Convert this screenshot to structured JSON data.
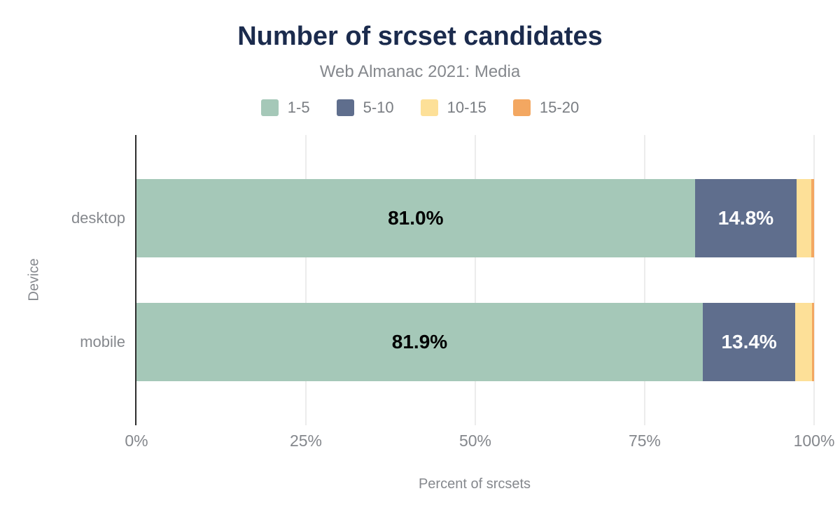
{
  "chart_data": {
    "type": "bar",
    "orientation": "horizontal",
    "stacked": true,
    "normalized": true,
    "title": "Number of srcset candidates",
    "subtitle": "Web Almanac 2021: Media",
    "xlabel": "Percent of srcsets",
    "ylabel": "Device",
    "categories": [
      "desktop",
      "mobile"
    ],
    "series": [
      {
        "name": "1-5",
        "color": "#a5c8b8",
        "label_color": "#000000",
        "values": [
          81.0,
          81.9
        ],
        "labels": [
          "81.0%",
          "81.9%"
        ]
      },
      {
        "name": "5-10",
        "color": "#5f6e8d",
        "label_color": "#ffffff",
        "values": [
          14.8,
          13.4
        ],
        "labels": [
          "14.8%",
          "13.4%"
        ]
      },
      {
        "name": "10-15",
        "color": "#fde098",
        "label_color": "#000000",
        "values": [
          2.1,
          2.4
        ],
        "labels": [
          "",
          ""
        ]
      },
      {
        "name": "15-20",
        "color": "#f3a761",
        "label_color": "#000000",
        "values": [
          0.4,
          0.3
        ],
        "labels": [
          "",
          ""
        ]
      }
    ],
    "x_ticks": [
      {
        "label": "0%",
        "pos": 0
      },
      {
        "label": "25%",
        "pos": 25
      },
      {
        "label": "50%",
        "pos": 50
      },
      {
        "label": "75%",
        "pos": 75
      },
      {
        "label": "100%",
        "pos": 100
      }
    ],
    "xlim": [
      0,
      100
    ],
    "grid": "vertical",
    "legend_position": "top"
  },
  "colors": {
    "title": "#1b2b4d",
    "subtitle_text": "#85888d",
    "axis_text": "#85888d",
    "tick_text": "#84878c",
    "legend_text": "#797d82",
    "axis_line": "#2e2e2e",
    "gridline": "#ececec",
    "background": "#ffffff"
  }
}
